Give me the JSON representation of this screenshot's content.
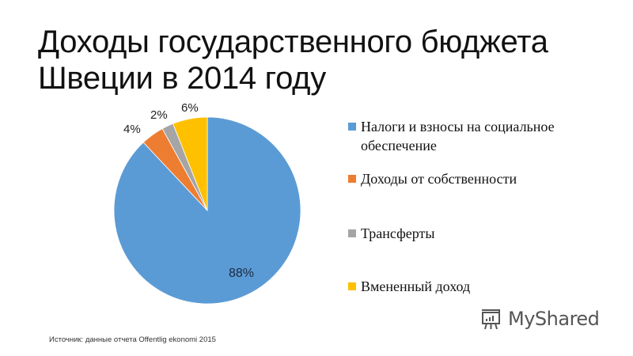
{
  "title": {
    "line1": "Доходы государственного бюджета",
    "line2": "Швеции в 2014 году"
  },
  "chart_data": {
    "type": "pie",
    "title": "Доходы государственного бюджета Швеции в 2014 году",
    "categories": [
      "Налоги и взносы на социальное обеспечение",
      "Доходы от собственности",
      "Трансферты",
      "Вмененный доход"
    ],
    "values": [
      88,
      4,
      2,
      6
    ],
    "unit": "%",
    "colors": [
      "#5b9bd5",
      "#ed7d31",
      "#a5a5a5",
      "#ffc000"
    ],
    "data_labels": [
      "88%",
      "4%",
      "2%",
      "6%"
    ],
    "legend_position": "right",
    "start_angle_deg": 0,
    "direction": "clockwise"
  },
  "labels": {
    "blue": "88%",
    "orange": "4%",
    "gray": "2%",
    "yellow": "6%"
  },
  "legend": {
    "items": [
      {
        "line1": "Налоги и взносы на социальное",
        "line2": "обеспечение",
        "color": "#5b9bd5"
      },
      {
        "line1": "Доходы от собственности",
        "color": "#ed7d31"
      },
      {
        "line1": "Трансферты",
        "color": "#a5a5a5"
      },
      {
        "line1": "Вмененный доход",
        "color": "#ffc000"
      }
    ]
  },
  "source": "Источник:  данные отчета Offentlig ekonomi  2015",
  "watermark": "MyShared"
}
